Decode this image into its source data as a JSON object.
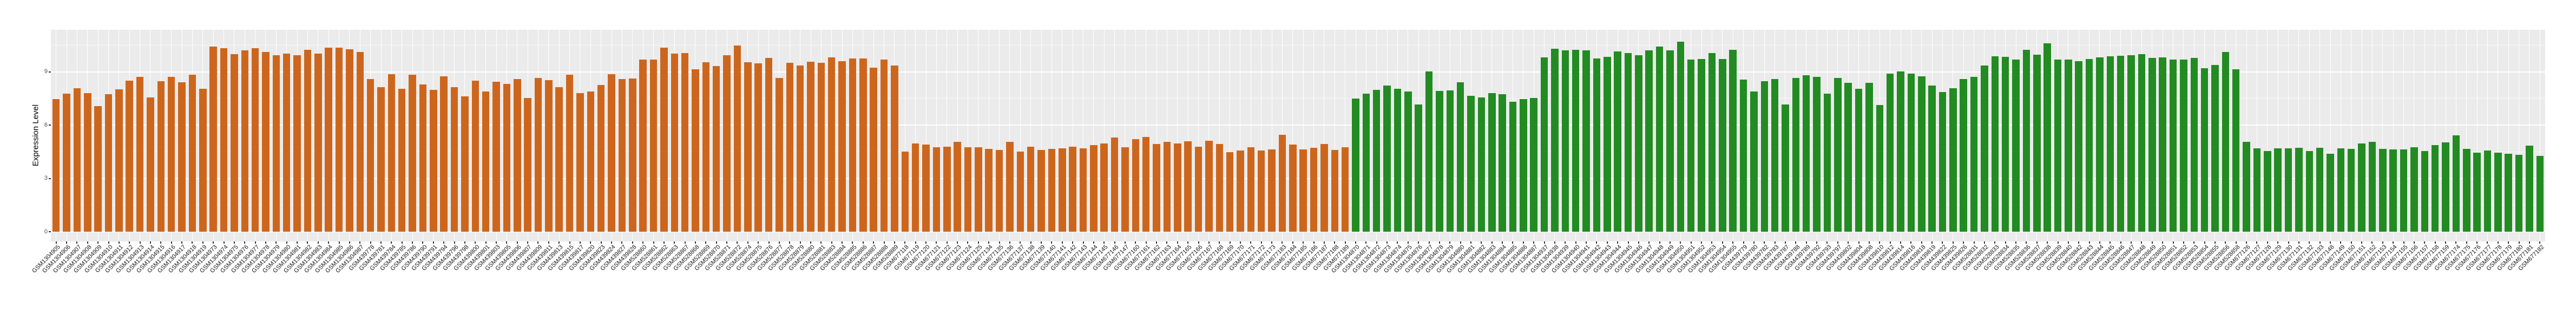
{
  "y_axis": {
    "title": "Expression Level",
    "ticks": [
      {
        "label": "0",
        "value": 0
      },
      {
        "label": "3",
        "value": 3
      },
      {
        "label": "6",
        "value": 6
      },
      {
        "label": "9",
        "value": 9
      }
    ],
    "minor_gridlines": [
      1.5,
      4.5,
      7.5,
      10.5
    ]
  },
  "colors": {
    "panel_background": "#EBEBEB",
    "grid_major": "#FFFFFF",
    "grid_minor": "rgba(255,255,255,0.65)",
    "orange_group": "#CD661D",
    "green_group": "#228B22",
    "axis_tick_text": "#4D4D4D",
    "x_label_text": "#1A1A1A",
    "tick_mark": "#333333"
  },
  "chart_data": {
    "type": "bar",
    "title": "",
    "xlabel": "",
    "ylabel": "Expression Level",
    "ylim": [
      -0.58,
      11.36
    ],
    "yticks": [
      0,
      3,
      6,
      9
    ],
    "grid": true,
    "legend": false,
    "groups": [
      {
        "name": "orange-group",
        "color": "#CD661D",
        "samples": [
          [
            "GSM1304905",
            7.47
          ],
          [
            "GSM1304906",
            7.76
          ],
          [
            "GSM1304907",
            8.06
          ],
          [
            "GSM1304908",
            7.8
          ],
          [
            "GSM1304909",
            7.06
          ],
          [
            "GSM1304910",
            7.73
          ],
          [
            "GSM1304911",
            8.0
          ],
          [
            "GSM1304912",
            8.51
          ],
          [
            "GSM1304913",
            8.72
          ],
          [
            "GSM1304914",
            7.56
          ],
          [
            "GSM1304915",
            8.48
          ],
          [
            "GSM1304916",
            8.72
          ],
          [
            "GSM1304917",
            8.41
          ],
          [
            "GSM1304918",
            8.82
          ],
          [
            "GSM1304919",
            8.04
          ],
          [
            "GSM1304973",
            10.43
          ],
          [
            "GSM1304974",
            10.32
          ],
          [
            "GSM1304975",
            9.98
          ],
          [
            "GSM1304976",
            10.2
          ],
          [
            "GSM1304977",
            10.32
          ],
          [
            "GSM1304978",
            10.12
          ],
          [
            "GSM1304979",
            9.92
          ],
          [
            "GSM1304980",
            10.01
          ],
          [
            "GSM1304981",
            9.92
          ],
          [
            "GSM1304982",
            10.22
          ],
          [
            "GSM1304983",
            10.03
          ],
          [
            "GSM1304984",
            10.35
          ],
          [
            "GSM1304985",
            10.35
          ],
          [
            "GSM1304986",
            10.26
          ],
          [
            "GSM1304987",
            10.12
          ],
          [
            "GSM439778",
            8.58
          ],
          [
            "GSM439781",
            8.12
          ],
          [
            "GSM439784",
            8.86
          ],
          [
            "GSM439785",
            8.04
          ],
          [
            "GSM439786",
            8.82
          ],
          [
            "GSM439790",
            8.28
          ],
          [
            "GSM439791",
            7.97
          ],
          [
            "GSM439794",
            8.75
          ],
          [
            "GSM439796",
            8.14
          ],
          [
            "GSM439798",
            7.61
          ],
          [
            "GSM439800",
            8.51
          ],
          [
            "GSM439801",
            7.89
          ],
          [
            "GSM439803",
            8.45
          ],
          [
            "GSM439805",
            8.31
          ],
          [
            "GSM439806",
            8.6
          ],
          [
            "GSM439807",
            7.51
          ],
          [
            "GSM439809",
            8.64
          ],
          [
            "GSM439811",
            8.54
          ],
          [
            "GSM439813",
            8.12
          ],
          [
            "GSM439815",
            8.84
          ],
          [
            "GSM439817",
            7.8
          ],
          [
            "GSM439820",
            7.89
          ],
          [
            "GSM439823",
            8.25
          ],
          [
            "GSM439824",
            8.86
          ],
          [
            "GSM439827",
            8.58
          ],
          [
            "GSM439828",
            8.62
          ],
          [
            "GSM528860",
            9.68
          ],
          [
            "GSM528861",
            9.68
          ],
          [
            "GSM528862",
            10.37
          ],
          [
            "GSM528863",
            10.01
          ],
          [
            "GSM528867",
            10.06
          ],
          [
            "GSM528868",
            9.14
          ],
          [
            "GSM528869",
            9.53
          ],
          [
            "GSM528870",
            9.31
          ],
          [
            "GSM528871",
            9.92
          ],
          [
            "GSM528872",
            10.48
          ],
          [
            "GSM528874",
            9.53
          ],
          [
            "GSM528875",
            9.48
          ],
          [
            "GSM528876",
            9.79
          ],
          [
            "GSM528877",
            8.64
          ],
          [
            "GSM528878",
            9.51
          ],
          [
            "GSM528879",
            9.34
          ],
          [
            "GSM528880",
            9.57
          ],
          [
            "GSM528881",
            9.51
          ],
          [
            "GSM528883",
            9.81
          ],
          [
            "GSM528884",
            9.6
          ],
          [
            "GSM528885",
            9.76
          ],
          [
            "GSM528886",
            9.76
          ],
          [
            "GSM528887",
            9.23
          ],
          [
            "GSM528888",
            9.68
          ],
          [
            "GSM528889",
            9.36
          ],
          [
            "GSM677118",
            4.52
          ],
          [
            "GSM677119",
            4.95
          ],
          [
            "GSM677120",
            4.91
          ],
          [
            "GSM677121",
            4.74
          ],
          [
            "GSM677122",
            4.77
          ],
          [
            "GSM677123",
            5.05
          ],
          [
            "GSM677124",
            4.74
          ],
          [
            "GSM677125",
            4.76
          ],
          [
            "GSM677134",
            4.66
          ],
          [
            "GSM677135",
            4.6
          ],
          [
            "GSM677136",
            5.05
          ],
          [
            "GSM677137",
            4.52
          ],
          [
            "GSM677138",
            4.77
          ],
          [
            "GSM677139",
            4.6
          ],
          [
            "GSM677140",
            4.66
          ],
          [
            "GSM677141",
            4.68
          ],
          [
            "GSM677142",
            4.77
          ],
          [
            "GSM677143",
            4.69
          ],
          [
            "GSM677144",
            4.86
          ],
          [
            "GSM677145",
            4.96
          ],
          [
            "GSM677146",
            5.31
          ],
          [
            "GSM677147",
            4.75
          ],
          [
            "GSM677160",
            5.22
          ],
          [
            "GSM677161",
            5.33
          ],
          [
            "GSM677162",
            4.94
          ],
          [
            "GSM677163",
            5.05
          ],
          [
            "GSM677164",
            4.96
          ],
          [
            "GSM677165",
            5.08
          ],
          [
            "GSM677166",
            4.79
          ],
          [
            "GSM677167",
            5.11
          ],
          [
            "GSM677168",
            4.93
          ],
          [
            "GSM677169",
            4.47
          ],
          [
            "GSM677170",
            4.57
          ],
          [
            "GSM677171",
            4.74
          ],
          [
            "GSM677172",
            4.58
          ],
          [
            "GSM677173",
            4.64
          ],
          [
            "GSM677183",
            5.46
          ],
          [
            "GSM677184",
            4.91
          ],
          [
            "GSM677185",
            4.63
          ],
          [
            "GSM677186",
            4.72
          ],
          [
            "GSM677187",
            4.93
          ],
          [
            "GSM677188",
            4.6
          ],
          [
            "GSM677189",
            4.74
          ]
        ]
      },
      {
        "name": "green-group",
        "color": "#228B22",
        "samples": [
          [
            "GSM1304870",
            7.5
          ],
          [
            "GSM1304871",
            7.76
          ],
          [
            "GSM1304872",
            7.97
          ],
          [
            "GSM1304873",
            8.23
          ],
          [
            "GSM1304874",
            8.04
          ],
          [
            "GSM1304875",
            7.89
          ],
          [
            "GSM1304876",
            7.15
          ],
          [
            "GSM1304877",
            9.01
          ],
          [
            "GSM1304878",
            7.93
          ],
          [
            "GSM1304879",
            7.94
          ],
          [
            "GSM1304880",
            8.41
          ],
          [
            "GSM1304881",
            7.64
          ],
          [
            "GSM1304882",
            7.54
          ],
          [
            "GSM1304883",
            7.8
          ],
          [
            "GSM1304884",
            7.74
          ],
          [
            "GSM1304885",
            7.3
          ],
          [
            "GSM1304886",
            7.47
          ],
          [
            "GSM1304887",
            7.51
          ],
          [
            "GSM1304937",
            9.81
          ],
          [
            "GSM1304938",
            10.29
          ],
          [
            "GSM1304939",
            10.2
          ],
          [
            "GSM1304940",
            10.23
          ],
          [
            "GSM1304941",
            10.21
          ],
          [
            "GSM1304942",
            9.76
          ],
          [
            "GSM1304943",
            9.84
          ],
          [
            "GSM1304944",
            10.15
          ],
          [
            "GSM1304945",
            10.05
          ],
          [
            "GSM1304946",
            9.93
          ],
          [
            "GSM1304947",
            10.2
          ],
          [
            "GSM1304948",
            10.42
          ],
          [
            "GSM1304949",
            10.21
          ],
          [
            "GSM1304950",
            10.68
          ],
          [
            "GSM1304951",
            9.68
          ],
          [
            "GSM1304952",
            9.72
          ],
          [
            "GSM1304953",
            10.05
          ],
          [
            "GSM1304954",
            9.73
          ],
          [
            "GSM1304955",
            10.23
          ],
          [
            "GSM439779",
            8.56
          ],
          [
            "GSM439780",
            7.89
          ],
          [
            "GSM439782",
            8.47
          ],
          [
            "GSM439783",
            8.58
          ],
          [
            "GSM439787",
            7.17
          ],
          [
            "GSM439788",
            8.64
          ],
          [
            "GSM439789",
            8.81
          ],
          [
            "GSM439792",
            8.7
          ],
          [
            "GSM439793",
            7.78
          ],
          [
            "GSM439797",
            8.64
          ],
          [
            "GSM439802",
            8.39
          ],
          [
            "GSM439804",
            8.04
          ],
          [
            "GSM439808",
            8.39
          ],
          [
            "GSM439810",
            7.13
          ],
          [
            "GSM439812",
            8.9
          ],
          [
            "GSM439814",
            9.03
          ],
          [
            "GSM439816",
            8.9
          ],
          [
            "GSM439818",
            8.75
          ],
          [
            "GSM439819",
            8.23
          ],
          [
            "GSM439822",
            7.87
          ],
          [
            "GSM439825",
            8.06
          ],
          [
            "GSM439826",
            8.58
          ],
          [
            "GSM528831",
            8.7
          ],
          [
            "GSM528832",
            9.36
          ],
          [
            "GSM528833",
            9.88
          ],
          [
            "GSM528834",
            9.84
          ],
          [
            "GSM528835",
            9.7
          ],
          [
            "GSM528836",
            10.23
          ],
          [
            "GSM528837",
            9.95
          ],
          [
            "GSM528838",
            10.6
          ],
          [
            "GSM528839",
            9.68
          ],
          [
            "GSM528840",
            9.7
          ],
          [
            "GSM528842",
            9.6
          ],
          [
            "GSM528843",
            9.73
          ],
          [
            "GSM528844",
            9.82
          ],
          [
            "GSM528845",
            9.87
          ],
          [
            "GSM528846",
            9.9
          ],
          [
            "GSM528847",
            9.92
          ],
          [
            "GSM528848",
            10.0
          ],
          [
            "GSM528849",
            9.77
          ],
          [
            "GSM528850",
            9.81
          ],
          [
            "GSM528851",
            9.68
          ],
          [
            "GSM528852",
            9.7
          ],
          [
            "GSM528853",
            9.79
          ],
          [
            "GSM528854",
            9.21
          ],
          [
            "GSM528855",
            9.38
          ],
          [
            "GSM528856",
            10.12
          ],
          [
            "GSM528858",
            9.15
          ],
          [
            "GSM677126",
            5.05
          ],
          [
            "GSM677127",
            4.69
          ],
          [
            "GSM677128",
            4.55
          ],
          [
            "GSM677129",
            4.69
          ],
          [
            "GSM677130",
            4.68
          ],
          [
            "GSM677131",
            4.72
          ],
          [
            "GSM677132",
            4.55
          ],
          [
            "GSM677133",
            4.72
          ],
          [
            "GSM677148",
            4.4
          ],
          [
            "GSM677149",
            4.68
          ],
          [
            "GSM677150",
            4.65
          ],
          [
            "GSM677151",
            4.96
          ],
          [
            "GSM677152",
            5.07
          ],
          [
            "GSM677153",
            4.66
          ],
          [
            "GSM677154",
            4.63
          ],
          [
            "GSM677155",
            4.63
          ],
          [
            "GSM677156",
            4.74
          ],
          [
            "GSM677157",
            4.54
          ],
          [
            "GSM677158",
            4.86
          ],
          [
            "GSM677159",
            5.03
          ],
          [
            "GSM677174",
            5.42
          ],
          [
            "GSM677175",
            4.66
          ],
          [
            "GSM677176",
            4.46
          ],
          [
            "GSM677177",
            4.57
          ],
          [
            "GSM677178",
            4.44
          ],
          [
            "GSM677179",
            4.38
          ],
          [
            "GSM677180",
            4.33
          ],
          [
            "GSM677181",
            4.85
          ],
          [
            "GSM677182",
            4.25
          ]
        ]
      }
    ]
  }
}
